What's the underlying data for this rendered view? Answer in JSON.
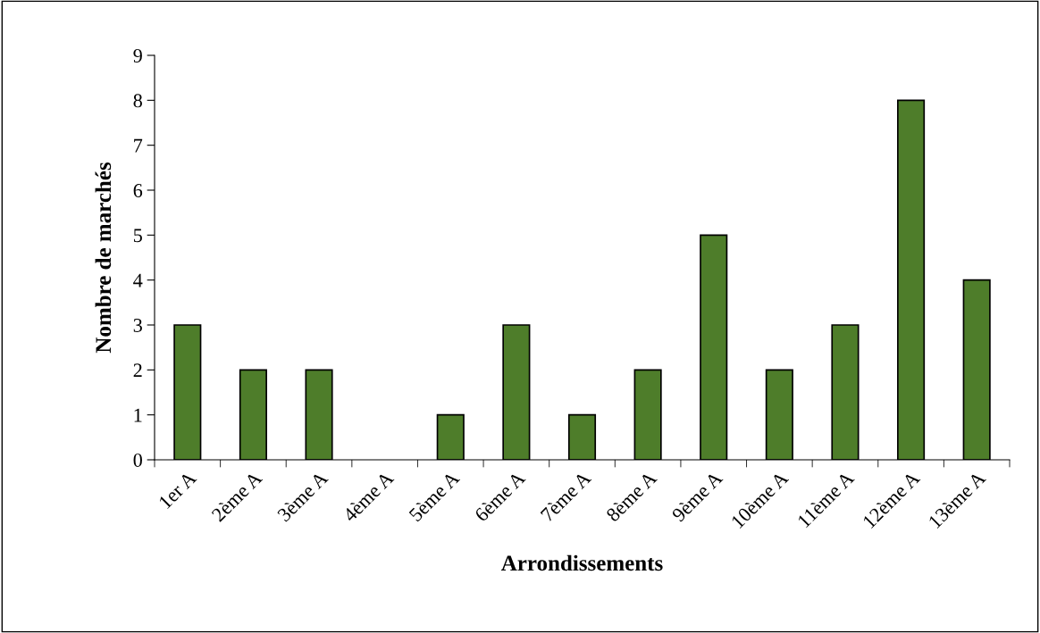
{
  "chart_data": {
    "type": "bar",
    "xlabel": "Arrondissements",
    "ylabel": "Nombre de marchés",
    "categories": [
      "1er A",
      "2ème A",
      "3ème A",
      "4ème A",
      "5ème A",
      "6ème A",
      "7ème A",
      "8ème A",
      "9ème A",
      "10ème A",
      "11ème A",
      "12ème A",
      "13ème A"
    ],
    "values": [
      3,
      2,
      2,
      0,
      1,
      3,
      1,
      2,
      5,
      2,
      3,
      8,
      4
    ],
    "color": "#4e7d2a",
    "ylim": [
      0,
      9
    ],
    "yticks": [
      0,
      1,
      2,
      3,
      4,
      5,
      6,
      7,
      8,
      9
    ],
    "grid": false,
    "legend": false
  }
}
